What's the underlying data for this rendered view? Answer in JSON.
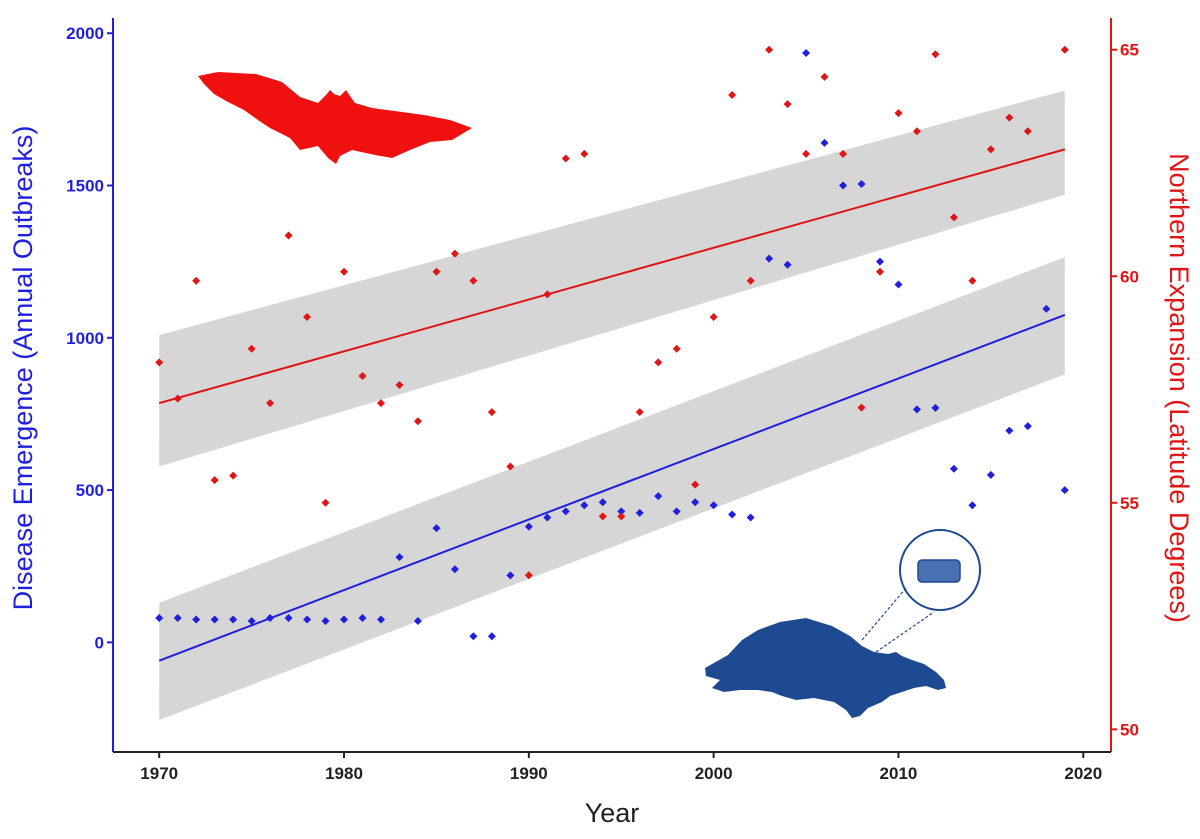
{
  "chart_data": {
    "type": "scatter",
    "xlabel": "Year",
    "ylabel_left": "Disease Emergence (Annual Outbreaks)",
    "ylabel_right": "Northern Expansion (Latitude Degrees)",
    "x_ticks": [
      1970,
      1980,
      1990,
      2000,
      2010,
      2020
    ],
    "y_left_ticks": [
      0,
      500,
      1000,
      1500,
      2000
    ],
    "y_right_ticks": [
      50,
      55,
      60,
      65
    ],
    "xlim": [
      1967.5,
      2021.5
    ],
    "ylim_left": [
      -360,
      2050
    ],
    "ylim_right": [
      49.5,
      65.7
    ],
    "colors": {
      "disease": "#1f1fe0",
      "latitude": "#e01515",
      "band": "#d6d6d6"
    },
    "icons": [
      "bat-silhouette",
      "buffalo-silhouette",
      "pathogen-magnifier"
    ],
    "series": [
      {
        "key": "disease",
        "axis": "left",
        "points": [
          [
            1970,
            80
          ],
          [
            1971,
            80
          ],
          [
            1972,
            75
          ],
          [
            1973,
            75
          ],
          [
            1974,
            75
          ],
          [
            1975,
            70
          ],
          [
            1976,
            80
          ],
          [
            1977,
            80
          ],
          [
            1978,
            75
          ],
          [
            1979,
            70
          ],
          [
            1980,
            75
          ],
          [
            1981,
            80
          ],
          [
            1982,
            75
          ],
          [
            1983,
            280
          ],
          [
            1984,
            70
          ],
          [
            1985,
            375
          ],
          [
            1986,
            240
          ],
          [
            1987,
            20
          ],
          [
            1988,
            20
          ],
          [
            1989,
            220
          ],
          [
            1990,
            380
          ],
          [
            1991,
            410
          ],
          [
            1992,
            430
          ],
          [
            1993,
            450
          ],
          [
            1994,
            460
          ],
          [
            1995,
            430
          ],
          [
            1996,
            425
          ],
          [
            1997,
            480
          ],
          [
            1998,
            430
          ],
          [
            1999,
            460
          ],
          [
            2000,
            450
          ],
          [
            2001,
            420
          ],
          [
            2002,
            410
          ],
          [
            2003,
            1260
          ],
          [
            2004,
            1240
          ],
          [
            2005,
            1935
          ],
          [
            2006,
            1640
          ],
          [
            2007,
            1500
          ],
          [
            2008,
            1505
          ],
          [
            2009,
            1250
          ],
          [
            2010,
            1175
          ],
          [
            2011,
            765
          ],
          [
            2012,
            770
          ],
          [
            2013,
            570
          ],
          [
            2014,
            450
          ],
          [
            2015,
            550
          ],
          [
            2016,
            695
          ],
          [
            2017,
            710
          ],
          [
            2018,
            1095
          ],
          [
            2019,
            500
          ]
        ],
        "fit": {
          "start": [
            1970,
            -60
          ],
          "end": [
            2019,
            1075
          ]
        },
        "band_lower": [
          [
            1970,
            -255
          ],
          [
            2019,
            880
          ]
        ],
        "band_upper": [
          [
            1970,
            130
          ],
          [
            2019,
            1265
          ]
        ]
      },
      {
        "key": "latitude",
        "axis": "right",
        "points": [
          [
            1970,
            58.1
          ],
          [
            1971,
            57.3
          ],
          [
            1972,
            59.9
          ],
          [
            1973,
            55.5
          ],
          [
            1974,
            55.6
          ],
          [
            1975,
            58.4
          ],
          [
            1976,
            57.2
          ],
          [
            1977,
            60.9
          ],
          [
            1978,
            59.1
          ],
          [
            1979,
            55.0
          ],
          [
            1980,
            60.1
          ],
          [
            1981,
            57.8
          ],
          [
            1982,
            57.2
          ],
          [
            1983,
            57.6
          ],
          [
            1984,
            56.8
          ],
          [
            1985,
            60.1
          ],
          [
            1986,
            60.5
          ],
          [
            1987,
            59.9
          ],
          [
            1988,
            57.0
          ],
          [
            1989,
            55.8
          ],
          [
            1990,
            53.4
          ],
          [
            1991,
            59.6
          ],
          [
            1992,
            62.6
          ],
          [
            1993,
            62.7
          ],
          [
            1994,
            54.7
          ],
          [
            1995,
            54.7
          ],
          [
            1996,
            57.0
          ],
          [
            1997,
            58.1
          ],
          [
            1998,
            58.4
          ],
          [
            1999,
            55.4
          ],
          [
            2000,
            59.1
          ],
          [
            2001,
            64.0
          ],
          [
            2002,
            59.9
          ],
          [
            2003,
            65.0
          ],
          [
            2004,
            63.8
          ],
          [
            2005,
            62.7
          ],
          [
            2006,
            64.4
          ],
          [
            2007,
            62.7
          ],
          [
            2008,
            57.1
          ],
          [
            2009,
            60.1
          ],
          [
            2010,
            63.6
          ],
          [
            2011,
            63.2
          ],
          [
            2012,
            64.9
          ],
          [
            2013,
            61.3
          ],
          [
            2014,
            59.9
          ],
          [
            2015,
            62.8
          ],
          [
            2016,
            63.5
          ],
          [
            2017,
            63.2
          ],
          [
            2019,
            65.0
          ]
        ],
        "fit": {
          "start": [
            1970,
            57.2
          ],
          "end": [
            2019,
            62.8
          ]
        },
        "band_lower": [
          [
            1970,
            55.8
          ],
          [
            2019,
            61.8
          ]
        ],
        "band_upper": [
          [
            1970,
            58.7
          ],
          [
            2019,
            64.1
          ]
        ]
      }
    ]
  }
}
